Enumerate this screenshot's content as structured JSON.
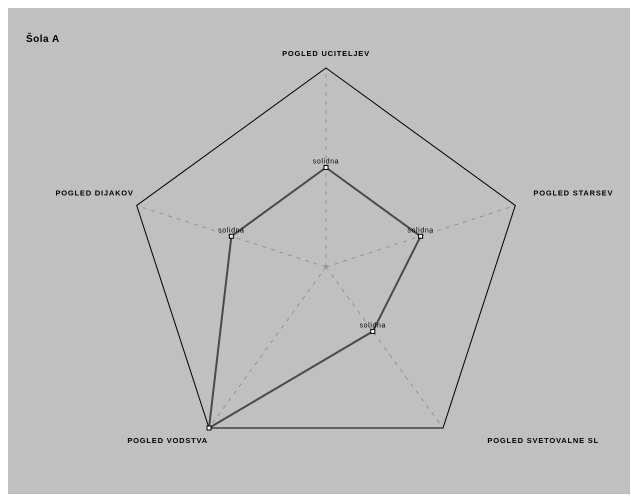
{
  "chart_data": {
    "type": "radar",
    "title": "Šola A",
    "axes": [
      "POGLED UCITELJEV",
      "POGLED STARSEV",
      "POGLED SVETOVALNE SL",
      "POGLED VODSTVA",
      "POGLED DIJAKOV"
    ],
    "series": [
      {
        "values": [
          0.5,
          0.5,
          0.4,
          1.0,
          0.5
        ],
        "data_labels": [
          "solidna",
          "solidna",
          "solidna",
          "",
          "solidna"
        ],
        "color": "#4a4a4a"
      }
    ],
    "range": [
      0,
      1
    ],
    "grid": true,
    "colors": {
      "background": "#c0c0c0",
      "outline": "#000000",
      "grid": "#8c8c8c",
      "series": "#4a4a4a"
    }
  }
}
